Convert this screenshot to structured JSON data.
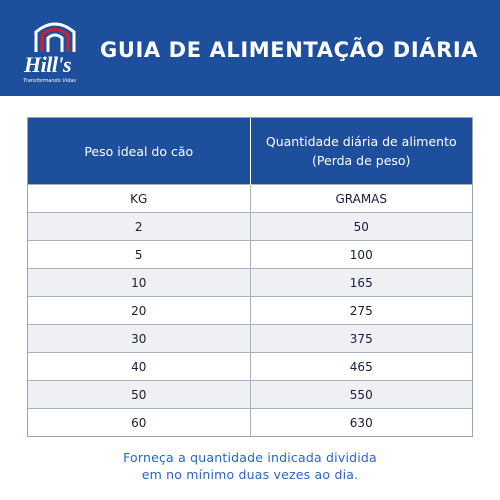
{
  "header": {
    "brand": "Hill's",
    "tagline": "Transformando Vidas",
    "title": "GUIA DE ALIMENTAÇÃO DIÁRIA"
  },
  "table": {
    "columns": [
      "Peso ideal do cão",
      "Quantidade diária de alimento (Perda de peso)"
    ],
    "units": [
      "KG",
      "GRAMAS"
    ],
    "rows": [
      [
        "2",
        "50"
      ],
      [
        "5",
        "100"
      ],
      [
        "10",
        "165"
      ],
      [
        "20",
        "275"
      ],
      [
        "30",
        "375"
      ],
      [
        "40",
        "465"
      ],
      [
        "50",
        "550"
      ],
      [
        "60",
        "630"
      ]
    ]
  },
  "footnote": {
    "line1": "Forneça a quantidade indicada dividida",
    "line2": "em no mínimo duas vezes ao dia."
  },
  "colors": {
    "brand_blue": "#1d4f9c",
    "footnote_blue": "#2a64c4",
    "logo_red": "#d0202e"
  }
}
